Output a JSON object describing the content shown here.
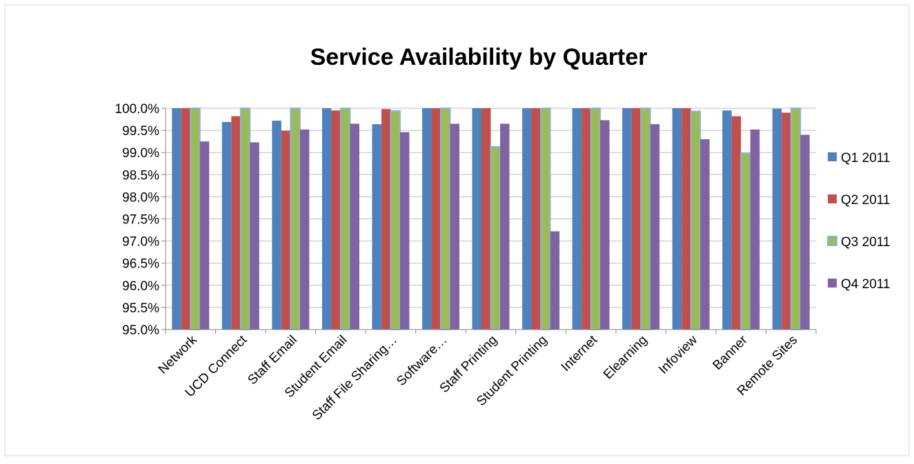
{
  "chart_data": {
    "type": "bar",
    "title": "Service Availability by Quarter",
    "xlabel": "",
    "ylabel": "",
    "ylim": [
      95.0,
      100.0
    ],
    "y_ticks": [
      "95.0%",
      "95.5%",
      "96.0%",
      "96.5%",
      "97.0%",
      "97.5%",
      "98.0%",
      "98.5%",
      "99.0%",
      "99.5%",
      "100.0%"
    ],
    "grid": true,
    "legend_position": "right",
    "categories": [
      "Network",
      "UCD Connect",
      "Staff Email",
      "Student Email",
      "Staff File Sharing…",
      "Software…",
      "Staff Printing",
      "Student Printing",
      "Internet",
      "Elearning",
      "Infoview",
      "Banner",
      "Remote Sites"
    ],
    "series": [
      {
        "name": "Q1 2011",
        "color": "#4F81BD",
        "values": [
          100.0,
          99.69,
          99.72,
          100.0,
          99.64,
          100.0,
          100.0,
          100.0,
          100.0,
          100.0,
          100.0,
          99.95,
          99.99
        ]
      },
      {
        "name": "Q2 2011",
        "color": "#C0504D",
        "values": [
          100.0,
          99.82,
          99.49,
          99.95,
          99.98,
          100.0,
          100.0,
          100.0,
          100.0,
          100.0,
          100.0,
          99.82,
          99.9
        ]
      },
      {
        "name": "Q3 2011",
        "color": "#9BBB59",
        "values": [
          100.0,
          100.0,
          100.0,
          100.0,
          99.94,
          100.0,
          99.13,
          100.0,
          100.0,
          100.0,
          99.93,
          98.98,
          100.0
        ]
      },
      {
        "name": "Q4 2011",
        "color": "#8064A2",
        "values": [
          99.25,
          99.23,
          99.52,
          99.65,
          99.46,
          99.65,
          99.65,
          97.22,
          99.73,
          99.64,
          99.3,
          99.52,
          99.4
        ]
      }
    ],
    "series_outline_color": "#8DB4E2"
  }
}
